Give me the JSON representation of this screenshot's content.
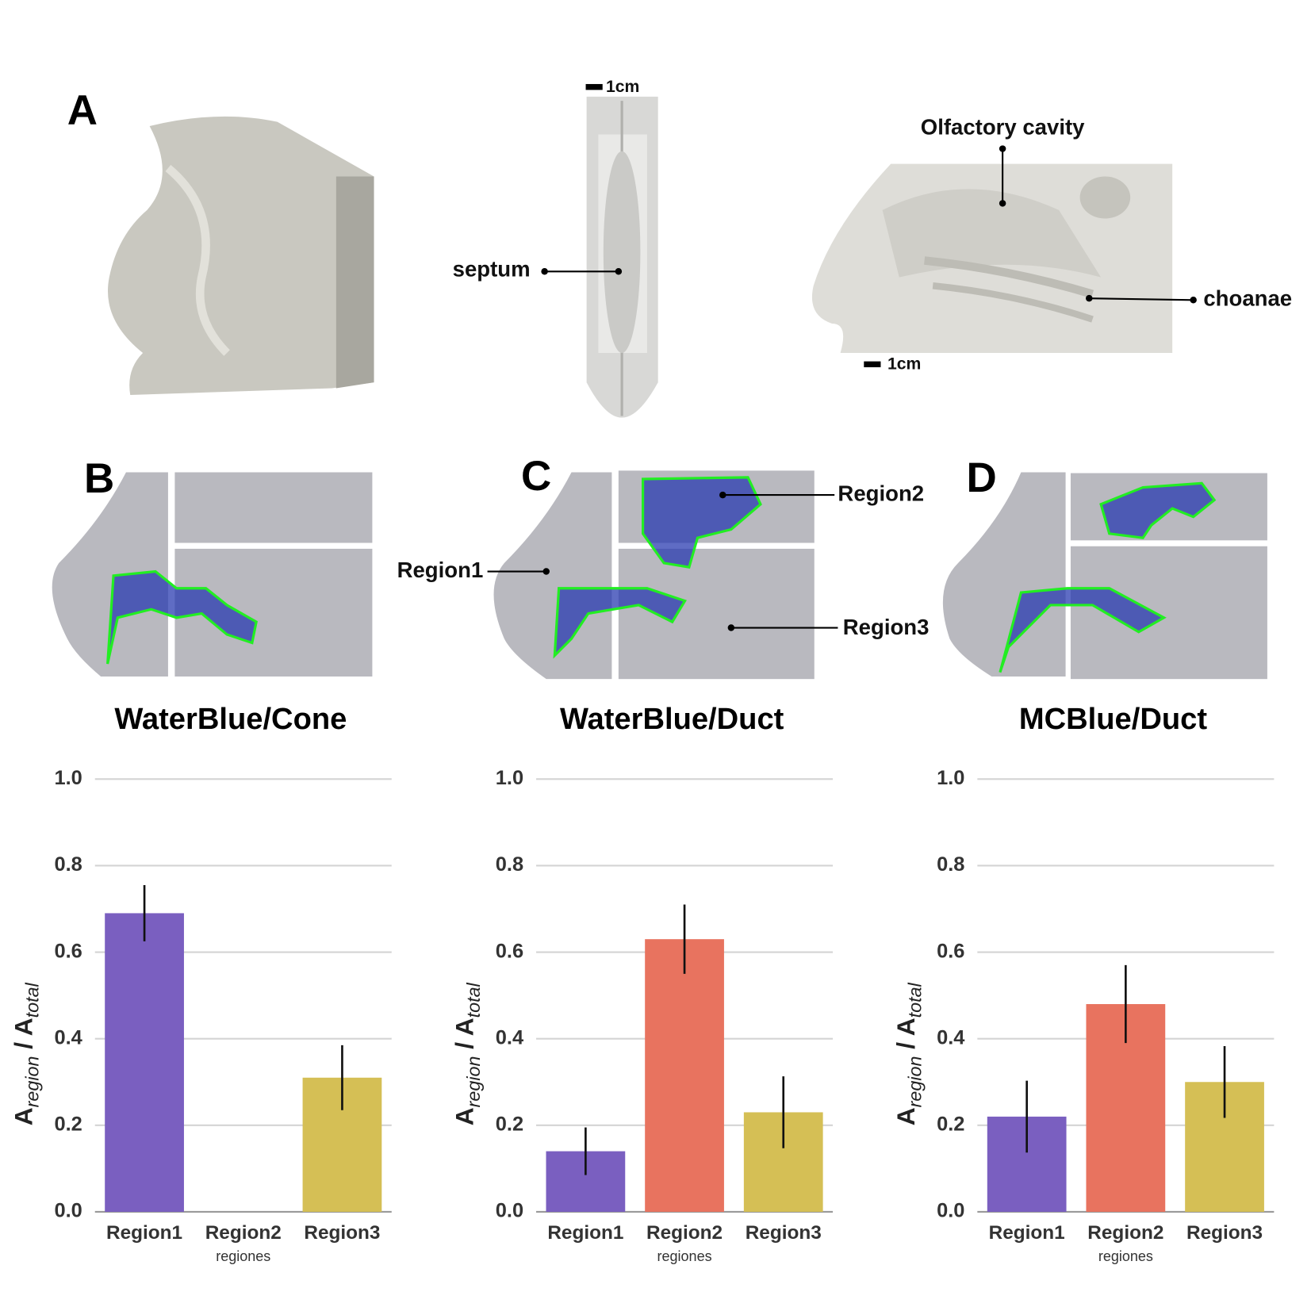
{
  "labels": {
    "panel_a": "A",
    "panel_b": "B",
    "panel_c": "C",
    "panel_d": "D",
    "scale_top": "1cm",
    "scale_right": "1cm",
    "septum": "septum",
    "olfactory": "Olfactory cavity",
    "choanae": "choanae",
    "region1": "Region1",
    "region2": "Region2",
    "region3": "Region3"
  },
  "chart_data": [
    {
      "type": "bar",
      "title": "WaterBlue/Cone",
      "ylabel": [
        "A",
        "region",
        " / A",
        "total"
      ],
      "xlabel": "regiones",
      "categories": [
        "Region1",
        "Region2",
        "Region3"
      ],
      "values": [
        0.69,
        0,
        0.31
      ],
      "errors": [
        0.065,
        null,
        0.075
      ],
      "colors": [
        "#7a5fc0",
        "#e8735f",
        "#d5bf55"
      ],
      "ylim": [
        0,
        1
      ],
      "yticks": [
        {
          "value": 0,
          "label": "0.0"
        },
        0.2,
        0.4,
        0.6,
        0.8,
        {
          "value": 1,
          "label": "1.0"
        }
      ],
      "grid": true
    },
    {
      "type": "bar",
      "title": "WaterBlue/Duct",
      "ylabel": [
        "A",
        "region",
        " / A",
        "total"
      ],
      "xlabel": "regiones",
      "categories": [
        "Region1",
        "Region2",
        "Region3"
      ],
      "values": [
        0.14,
        0.63,
        0.23
      ],
      "errors": [
        0.055,
        0.08,
        0.083
      ],
      "colors": [
        "#7a5fc0",
        "#e8735f",
        "#d5bf55"
      ],
      "ylim": [
        0,
        1
      ],
      "yticks": [
        {
          "value": 0,
          "label": "0.0"
        },
        0.2,
        0.4,
        0.6,
        0.8,
        {
          "value": 1,
          "label": "1.0"
        }
      ],
      "grid": true
    },
    {
      "type": "bar",
      "title": "MCBlue/Duct",
      "ylabel": [
        "A",
        "region",
        " / A",
        "total"
      ],
      "xlabel": "regiones",
      "categories": [
        "Region1",
        "Region2",
        "Region3"
      ],
      "values": [
        0.22,
        0.48,
        0.3
      ],
      "errors": [
        0.083,
        0.09,
        0.083
      ],
      "colors": [
        "#7a5fc0",
        "#e8735f",
        "#d5bf55"
      ],
      "ylim": [
        0,
        1
      ],
      "yticks": [
        {
          "value": 0,
          "label": "0.0"
        },
        0.2,
        0.4,
        0.6,
        0.8,
        {
          "value": 1,
          "label": "1.0"
        }
      ],
      "grid": true
    }
  ]
}
